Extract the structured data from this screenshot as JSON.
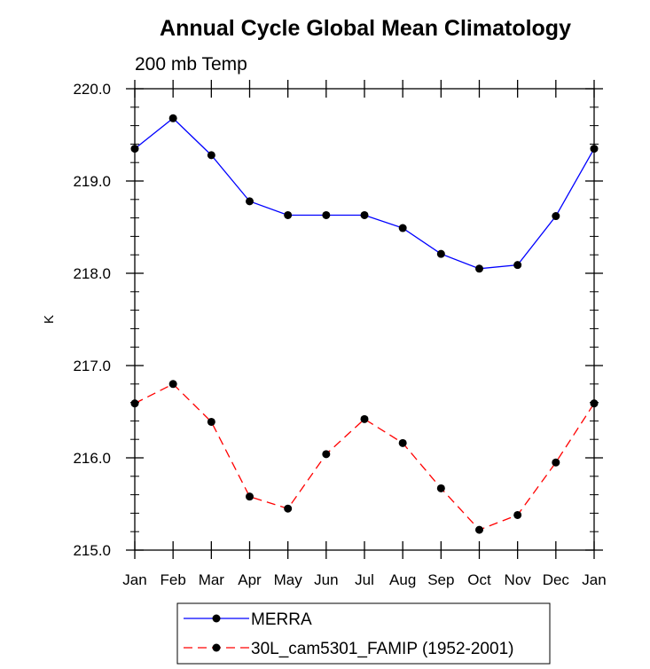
{
  "chart_data": {
    "type": "line",
    "title": "Annual Cycle Global Mean Climatology",
    "subtitle": "200 mb Temp",
    "xlabel": "",
    "ylabel": "K",
    "categories": [
      "Jan",
      "Feb",
      "Mar",
      "Apr",
      "May",
      "Jun",
      "Jul",
      "Aug",
      "Sep",
      "Oct",
      "Nov",
      "Dec",
      "Jan"
    ],
    "ylim": [
      215.0,
      220.0
    ],
    "yticks": [
      "215.0",
      "216.0",
      "217.0",
      "218.0",
      "219.0",
      "220.0"
    ],
    "grid": false,
    "legend_position": "bottom",
    "series": [
      {
        "name": "MERRA",
        "color": "#0000ff",
        "line_style": "solid",
        "marker": "filled-circle",
        "values": [
          219.35,
          219.68,
          219.28,
          218.78,
          218.63,
          218.63,
          218.63,
          218.49,
          218.21,
          218.05,
          218.09,
          218.62,
          219.35
        ]
      },
      {
        "name": "30L_cam5301_FAMIP (1952-2001)",
        "color": "#ff0000",
        "line_style": "dashed",
        "marker": "filled-circle",
        "values": [
          216.59,
          216.8,
          216.39,
          215.58,
          215.45,
          216.04,
          216.42,
          216.16,
          215.67,
          215.22,
          215.38,
          215.95,
          216.59
        ]
      }
    ]
  }
}
